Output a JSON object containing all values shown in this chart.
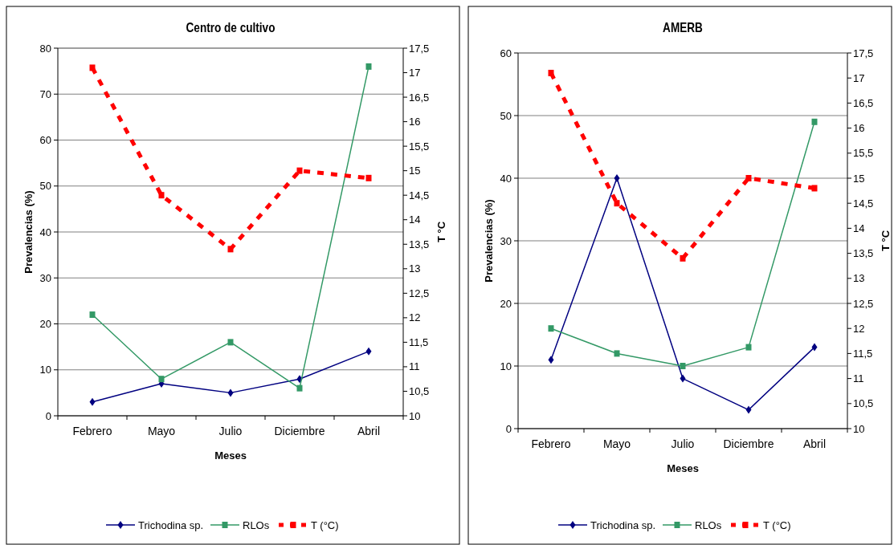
{
  "chart_data": [
    {
      "type": "line",
      "title": "Centro de cultivo",
      "xlabel": "Meses",
      "ylabel": "Prevalencias (%)",
      "y2label": "T °C",
      "categories": [
        "Febrero",
        "Mayo",
        "Julio",
        "Diciembre",
        "Abril"
      ],
      "series": [
        {
          "name": "Trichodina sp.",
          "color": "#000080",
          "values": [
            3,
            7,
            5,
            8,
            14
          ],
          "marker": "diamond",
          "line_style": "solid"
        },
        {
          "name": "RLOs",
          "color": "#339966",
          "values": [
            22,
            8,
            16,
            6,
            76
          ],
          "marker": "square",
          "line_style": "solid"
        },
        {
          "name": "T (°C)",
          "color": "#ff0000",
          "values": [
            17.1,
            14.5,
            13.4,
            15.0,
            14.85
          ],
          "marker": "square",
          "line_style": "dashed",
          "axis": "y2"
        }
      ],
      "ylim": [
        0,
        80
      ],
      "yticks": [
        0,
        10,
        20,
        30,
        40,
        50,
        60,
        70,
        80
      ],
      "y2lim": [
        10,
        17.5
      ],
      "y2ticks": [
        10,
        {
          "value": 10.5,
          "label": "10,5"
        },
        11,
        {
          "value": 11.5,
          "label": "11,5"
        },
        12,
        {
          "value": 12.5,
          "label": "12,5"
        },
        13,
        {
          "value": 13.5,
          "label": "13,5"
        },
        14,
        {
          "value": 14.5,
          "label": "14,5"
        },
        15,
        {
          "value": 15.5,
          "label": "15,5"
        },
        16,
        {
          "value": 16.5,
          "label": "16,5"
        },
        17,
        {
          "value": 17.5,
          "label": "17,5"
        }
      ],
      "grid": "y",
      "legend": "bottom"
    },
    {
      "type": "line",
      "title": "AMERB",
      "xlabel": "Meses",
      "ylabel": "Prevalencias (%)",
      "y2label": "T °C",
      "categories": [
        "Febrero",
        "Mayo",
        "Julio",
        "Diciembre",
        "Abril"
      ],
      "series": [
        {
          "name": "Trichodina sp.",
          "color": "#000080",
          "values": [
            11,
            40,
            8,
            3,
            13
          ],
          "marker": "diamond",
          "line_style": "solid"
        },
        {
          "name": "RLOs",
          "color": "#339966",
          "values": [
            16,
            12,
            10,
            13,
            49
          ],
          "marker": "square",
          "line_style": "solid"
        },
        {
          "name": "T (°C)",
          "color": "#ff0000",
          "values": [
            17.1,
            14.5,
            13.4,
            15.0,
            14.8
          ],
          "marker": "square",
          "line_style": "dashed",
          "axis": "y2"
        }
      ],
      "ylim": [
        0,
        60
      ],
      "yticks": [
        0,
        10,
        20,
        30,
        40,
        50,
        60
      ],
      "y2lim": [
        10,
        17.5
      ],
      "y2ticks": [
        10,
        {
          "value": 10.5,
          "label": "10,5"
        },
        11,
        {
          "value": 11.5,
          "label": "11,5"
        },
        12,
        {
          "value": 12.5,
          "label": "12,5"
        },
        13,
        {
          "value": 13.5,
          "label": "13,5"
        },
        14,
        {
          "value": 14.5,
          "label": "14,5"
        },
        15,
        {
          "value": 15.5,
          "label": "15,5"
        },
        16,
        {
          "value": 16.5,
          "label": "16,5"
        },
        17,
        {
          "value": 17.5,
          "label": "17,5"
        }
      ],
      "grid": "y",
      "legend": "bottom"
    }
  ]
}
